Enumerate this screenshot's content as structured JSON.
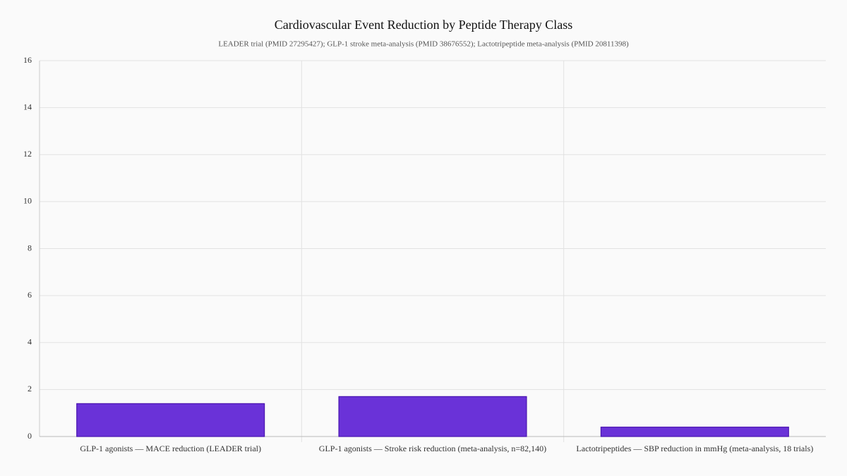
{
  "chart_data": {
    "type": "bar",
    "title": "Cardiovascular Event Reduction by Peptide Therapy Class",
    "subtitle": "LEADER trial (PMID 27295427); GLP-1 stroke meta-analysis (PMID 38676552); Lactotripeptide meta-analysis (PMID 20811398)",
    "categories": [
      "GLP-1 agonists — MACE reduction (LEADER trial)",
      "GLP-1 agonists — Stroke risk reduction (meta-analysis, n=82,140)",
      "Lactotripeptides — SBP reduction in mmHg (meta-analysis, 18 trials)"
    ],
    "values": [
      1.4,
      1.7,
      0.4
    ],
    "color": "#6a32d8",
    "ylim": [
      0,
      16
    ],
    "yticks": [
      0,
      2,
      4,
      6,
      8,
      10,
      12,
      14,
      16
    ],
    "grid": true
  }
}
